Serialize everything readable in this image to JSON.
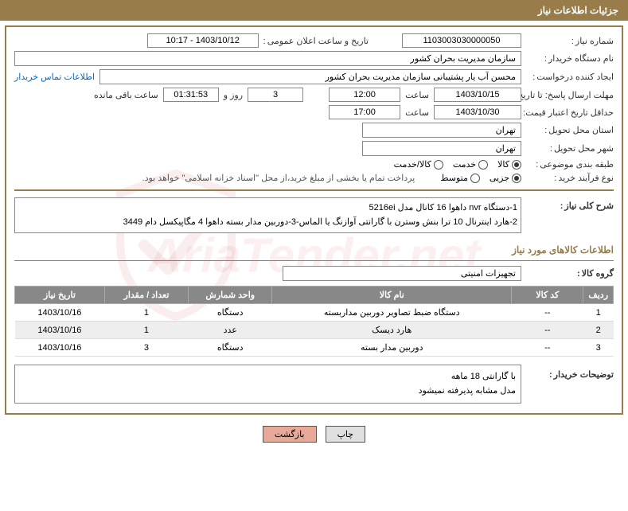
{
  "header": {
    "title": "جزئیات اطلاعات نیاز"
  },
  "fields": {
    "need_number_label": "شماره نیاز",
    "need_number": "1103003030000050",
    "announce_date_label": "تاریخ و ساعت اعلان عمومی",
    "announce_date": "1403/10/12 - 10:17",
    "buyer_org_label": "نام دستگاه خریدار",
    "buyer_org": "سازمان مدیریت بحران کشور",
    "requester_label": "ایجاد کننده درخواست",
    "requester": "محسن آب یار پشتیبانی سازمان مدیریت بحران کشور",
    "contact_link": "اطلاعات تماس خریدار",
    "deadline_send_label": "مهلت ارسال پاسخ: تا تاریخ",
    "deadline_send_date": "1403/10/15",
    "time_label": "ساعت",
    "deadline_send_time": "12:00",
    "days_remaining": "3",
    "days_and": "روز و",
    "hours_remaining": "01:31:53",
    "hours_remain_label": "ساعت باقی مانده",
    "validity_label": "حداقل تاریخ اعتبار قیمت: تا تاریخ",
    "validity_date": "1403/10/30",
    "validity_time": "17:00",
    "province_label": "استان محل تحویل",
    "province": "تهران",
    "city_label": "شهر محل تحویل",
    "city": "تهران",
    "classification_label": "طبقه بندی موضوعی",
    "purchase_process_label": "نوع فرآیند خرید",
    "payment_note": "پرداخت تمام یا بخشی از مبلغ خرید،از محل \"اسناد خزانه اسلامی\" خواهد بود.",
    "need_desc_label": "شرح کلی نیاز",
    "need_desc_line1": "1-دستگاه nvr داهوا 16 کانال مدل 5216ei",
    "need_desc_line2": "2-هارد اینترنال 10 ترا بنش وسترن با گارانتی آوازنگ یا الماس-3-دوربین مدار بسته داهوا 4 مگاپیکسل دام 3449",
    "goods_section_title": "اطلاعات کالاهای مورد نیاز",
    "goods_group_label": "گروه کالا",
    "goods_group": "تجهیزات امنیتی",
    "buyer_notes_label": "توضیحات خریدار",
    "buyer_notes_line1": "با گارانتی 18 ماهه",
    "buyer_notes_line2": "مدل مشابه پذیرفته نمیشود"
  },
  "radios": {
    "classification": {
      "options": [
        "کالا",
        "خدمت",
        "کالا/خدمت"
      ],
      "selected": 0
    },
    "process": {
      "options": [
        "جزیی",
        "متوسط"
      ],
      "selected": 0
    }
  },
  "table": {
    "headers": [
      "ردیف",
      "کد کالا",
      "نام کالا",
      "واحد شمارش",
      "تعداد / مقدار",
      "تاریخ نیاز"
    ],
    "rows": [
      [
        "1",
        "--",
        "دستگاه ضبط تصاویر دوربین مداربسته",
        "دستگاه",
        "1",
        "1403/10/16"
      ],
      [
        "2",
        "--",
        "هارد دیسک",
        "عدد",
        "1",
        "1403/10/16"
      ],
      [
        "3",
        "--",
        "دوربین مدار بسته",
        "دستگاه",
        "3",
        "1403/10/16"
      ]
    ]
  },
  "buttons": {
    "print": "چاپ",
    "back": "بازگشت"
  },
  "watermark": "AriaTender.net"
}
